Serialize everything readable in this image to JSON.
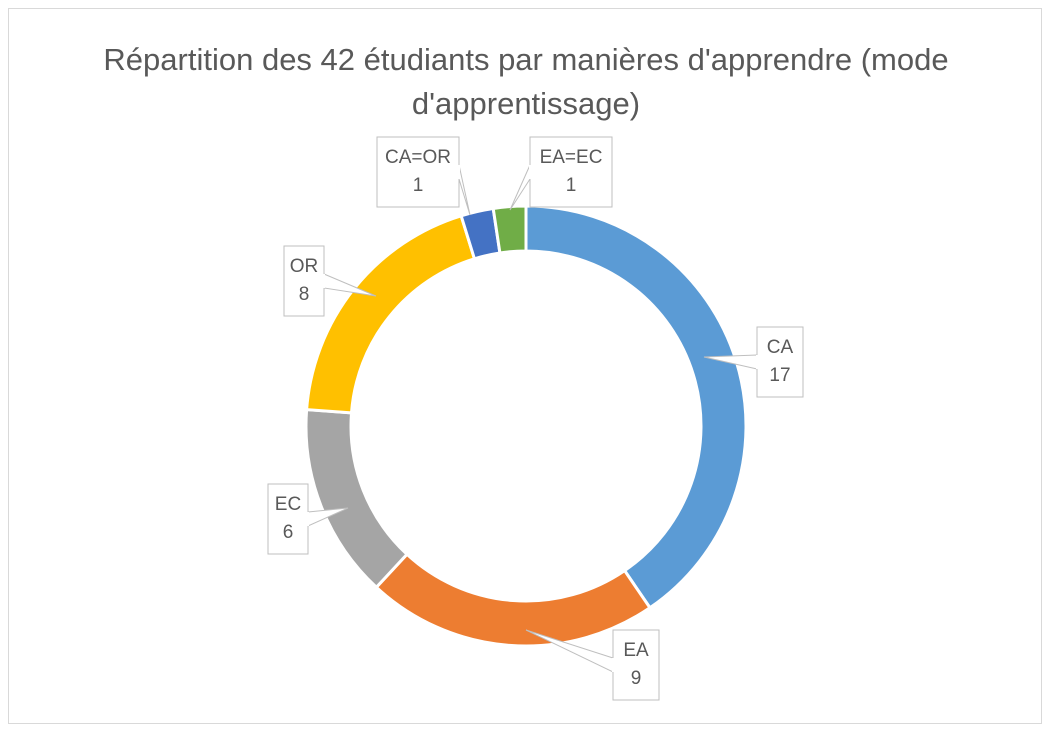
{
  "chart_data": {
    "type": "pie",
    "title": "Répartition des 42 étudiants par manières d'apprendre (mode d'apprentissage)",
    "categories": [
      "CA",
      "EA",
      "EC",
      "OR",
      "CA=OR",
      "EA=EC"
    ],
    "values": [
      17,
      9,
      6,
      8,
      1,
      1
    ],
    "colors": [
      "#5b9bd5",
      "#ed7d31",
      "#a5a5a5",
      "#ffc000",
      "#4472c4",
      "#70ad47"
    ],
    "data_labels": [
      "CA\n17",
      "EA\n9",
      "EC\n6",
      "OR\n8",
      "CA=OR\n1",
      "EA=EC\n1"
    ],
    "style": "doughnut",
    "legend": "none"
  }
}
